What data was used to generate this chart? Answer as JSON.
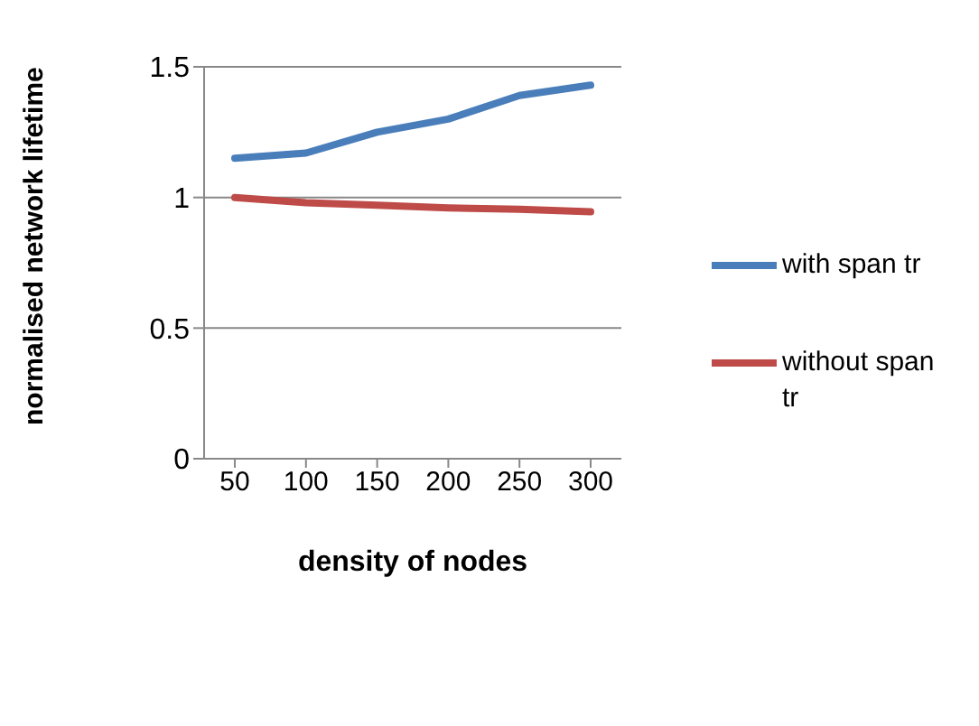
{
  "chart_data": {
    "type": "line",
    "xlabel": "density of nodes",
    "ylabel": "normalised network lifetime",
    "categories": [
      "50",
      "100",
      "150",
      "200",
      "250",
      "300"
    ],
    "series": [
      {
        "name": "with span tr",
        "color": "#4a7ebb",
        "values": [
          1.15,
          1.17,
          1.25,
          1.3,
          1.39,
          1.43
        ]
      },
      {
        "name": "without span tr",
        "color": "#be4b48",
        "values": [
          1.0,
          0.98,
          0.97,
          0.96,
          0.955,
          0.945
        ]
      }
    ],
    "ylim": [
      0,
      1.5
    ],
    "yticks": [
      0,
      0.5,
      1,
      1.5
    ],
    "grid": "y",
    "legend": "right",
    "marker": "none"
  }
}
